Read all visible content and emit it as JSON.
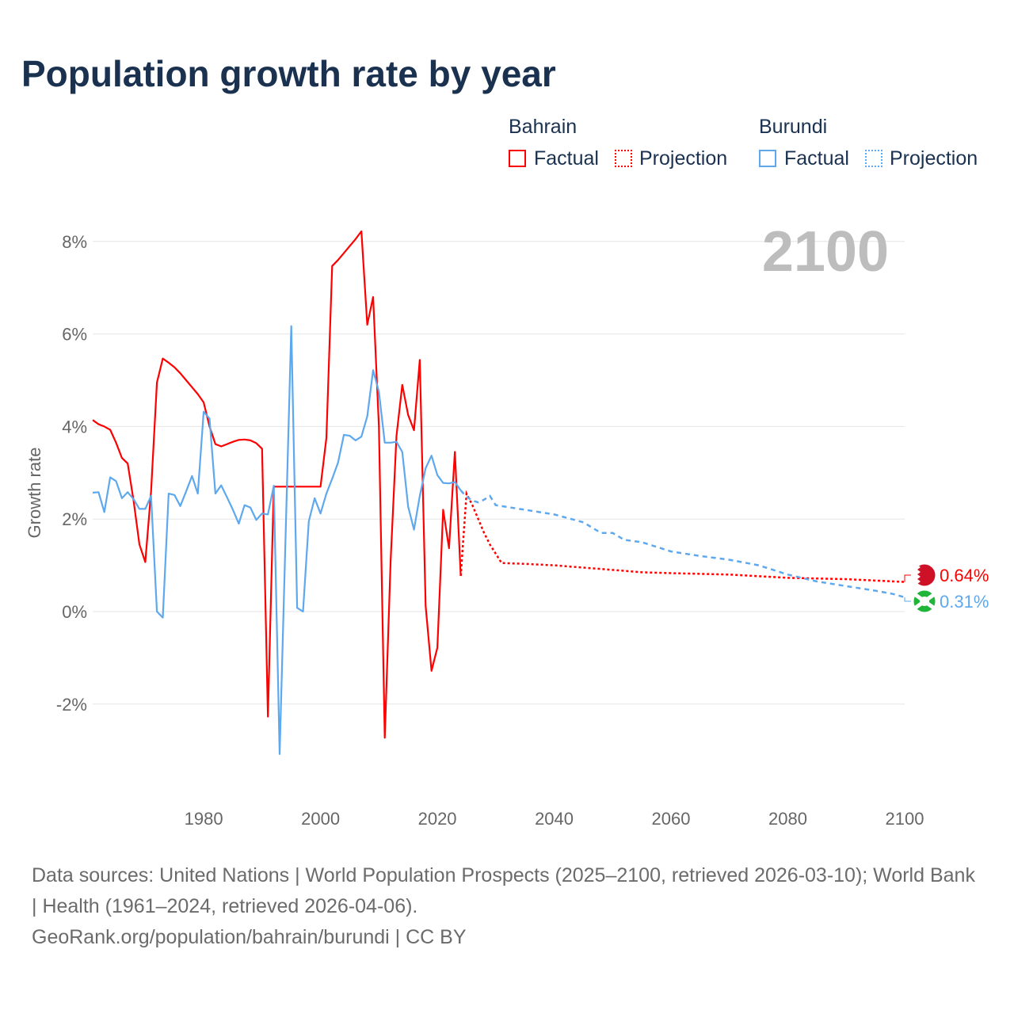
{
  "title": "Population growth rate by year",
  "legend": {
    "groups": [
      {
        "name": "Bahrain",
        "factual": "Factual",
        "projection": "Projection",
        "color": "#ff0000"
      },
      {
        "name": "Burundi",
        "factual": "Factual",
        "projection": "Projection",
        "color": "#5ea8ee"
      }
    ]
  },
  "year_label": "2100",
  "footer": {
    "line1": "Data sources: United Nations | World Population Prospects (2025–2100, retrieved 2026-03-10); World Bank | Health (1961–2024, retrieved 2026-04-06).",
    "line2": "GeoRank.org/population/bahrain/burundi | CC BY"
  },
  "chart_data": {
    "type": "line",
    "title": "Population growth rate by year",
    "xlabel": "",
    "ylabel": "Growth rate",
    "xlim": [
      1961,
      2100
    ],
    "ylim": [
      -3.5,
      8.5
    ],
    "grid": true,
    "legend_position": "top-right",
    "x_ticks": [
      1980,
      2000,
      2020,
      2040,
      2060,
      2080,
      2100
    ],
    "y_ticks": [
      {
        "v": -2,
        "label": "-2%"
      },
      {
        "v": 0,
        "label": "0%"
      },
      {
        "v": 2,
        "label": "2%"
      },
      {
        "v": 4,
        "label": "4%"
      },
      {
        "v": 6,
        "label": "6%"
      },
      {
        "v": 8,
        "label": "8%"
      }
    ],
    "series": [
      {
        "name": "Bahrain",
        "color": "#ff0000",
        "end_label": "0.64%",
        "factual": [
          [
            1961,
            4.14
          ],
          [
            1962,
            4.05
          ],
          [
            1963,
            4.0
          ],
          [
            1964,
            3.93
          ],
          [
            1965,
            3.65
          ],
          [
            1966,
            3.32
          ],
          [
            1967,
            3.2
          ],
          [
            1968,
            2.4
          ],
          [
            1969,
            1.45
          ],
          [
            1970,
            1.07
          ],
          [
            1971,
            2.6
          ],
          [
            1972,
            4.95
          ],
          [
            1973,
            5.47
          ],
          [
            1974,
            5.38
          ],
          [
            1975,
            5.28
          ],
          [
            1976,
            5.15
          ],
          [
            1977,
            5.0
          ],
          [
            1978,
            4.85
          ],
          [
            1979,
            4.7
          ],
          [
            1980,
            4.52
          ],
          [
            1981,
            4.0
          ],
          [
            1982,
            3.62
          ],
          [
            1983,
            3.57
          ],
          [
            1984,
            3.62
          ],
          [
            1985,
            3.67
          ],
          [
            1986,
            3.71
          ],
          [
            1987,
            3.72
          ],
          [
            1988,
            3.7
          ],
          [
            1989,
            3.64
          ],
          [
            1990,
            3.52
          ],
          [
            1991,
            -2.27
          ],
          [
            1992,
            2.7
          ],
          [
            1993,
            2.7
          ],
          [
            1994,
            2.7
          ],
          [
            1995,
            2.7
          ],
          [
            1996,
            2.7
          ],
          [
            1997,
            2.7
          ],
          [
            1998,
            2.7
          ],
          [
            1999,
            2.7
          ],
          [
            2000,
            2.7
          ],
          [
            2001,
            3.75
          ],
          [
            2002,
            7.47
          ],
          [
            2003,
            7.6
          ],
          [
            2004,
            7.75
          ],
          [
            2005,
            7.9
          ],
          [
            2006,
            8.05
          ],
          [
            2007,
            8.22
          ],
          [
            2008,
            6.2
          ],
          [
            2009,
            6.8
          ],
          [
            2010,
            4.0
          ],
          [
            2011,
            -2.73
          ],
          [
            2012,
            1.1
          ],
          [
            2013,
            3.8
          ],
          [
            2014,
            4.9
          ],
          [
            2015,
            4.25
          ],
          [
            2016,
            3.92
          ],
          [
            2017,
            5.44
          ],
          [
            2018,
            0.12
          ],
          [
            2019,
            -1.28
          ],
          [
            2020,
            -0.78
          ],
          [
            2021,
            2.2
          ],
          [
            2022,
            1.37
          ],
          [
            2023,
            3.45
          ],
          [
            2024,
            0.77
          ]
        ],
        "projection": [
          [
            2024,
            0.77
          ],
          [
            2025,
            2.55
          ],
          [
            2026,
            2.3
          ],
          [
            2027,
            2.0
          ],
          [
            2028,
            1.7
          ],
          [
            2029,
            1.45
          ],
          [
            2030,
            1.25
          ],
          [
            2031,
            1.05
          ],
          [
            2035,
            1.03
          ],
          [
            2040,
            1.0
          ],
          [
            2045,
            0.95
          ],
          [
            2050,
            0.9
          ],
          [
            2055,
            0.85
          ],
          [
            2060,
            0.83
          ],
          [
            2070,
            0.8
          ],
          [
            2080,
            0.73
          ],
          [
            2090,
            0.7
          ],
          [
            2100,
            0.64
          ]
        ]
      },
      {
        "name": "Burundi",
        "color": "#5ea8ee",
        "end_label": "0.31%",
        "factual": [
          [
            1961,
            2.57
          ],
          [
            1962,
            2.58
          ],
          [
            1963,
            2.15
          ],
          [
            1964,
            2.9
          ],
          [
            1965,
            2.82
          ],
          [
            1966,
            2.45
          ],
          [
            1967,
            2.58
          ],
          [
            1968,
            2.43
          ],
          [
            1969,
            2.22
          ],
          [
            1970,
            2.22
          ],
          [
            1971,
            2.5
          ],
          [
            1972,
            0.0
          ],
          [
            1973,
            -0.13
          ],
          [
            1974,
            2.55
          ],
          [
            1975,
            2.52
          ],
          [
            1976,
            2.28
          ],
          [
            1977,
            2.6
          ],
          [
            1978,
            2.93
          ],
          [
            1979,
            2.55
          ],
          [
            1980,
            4.32
          ],
          [
            1981,
            4.17
          ],
          [
            1982,
            2.55
          ],
          [
            1983,
            2.73
          ],
          [
            1984,
            2.47
          ],
          [
            1985,
            2.2
          ],
          [
            1986,
            1.9
          ],
          [
            1987,
            2.3
          ],
          [
            1988,
            2.25
          ],
          [
            1989,
            1.98
          ],
          [
            1990,
            2.12
          ],
          [
            1991,
            2.1
          ],
          [
            1992,
            2.72
          ],
          [
            1993,
            -3.08
          ],
          [
            1994,
            1.5
          ],
          [
            1995,
            6.17
          ],
          [
            1996,
            0.08
          ],
          [
            1997,
            0.0
          ],
          [
            1998,
            1.95
          ],
          [
            1999,
            2.45
          ],
          [
            2000,
            2.12
          ],
          [
            2001,
            2.55
          ],
          [
            2002,
            2.87
          ],
          [
            2003,
            3.22
          ],
          [
            2004,
            3.82
          ],
          [
            2005,
            3.8
          ],
          [
            2006,
            3.7
          ],
          [
            2007,
            3.78
          ],
          [
            2008,
            4.22
          ],
          [
            2009,
            5.22
          ],
          [
            2010,
            4.75
          ],
          [
            2011,
            3.65
          ],
          [
            2012,
            3.65
          ],
          [
            2013,
            3.67
          ],
          [
            2014,
            3.45
          ],
          [
            2015,
            2.27
          ],
          [
            2016,
            1.77
          ],
          [
            2017,
            2.5
          ],
          [
            2018,
            3.1
          ],
          [
            2019,
            3.37
          ],
          [
            2020,
            2.95
          ],
          [
            2021,
            2.78
          ],
          [
            2022,
            2.77
          ],
          [
            2023,
            2.8
          ],
          [
            2024,
            2.62
          ]
        ],
        "projection": [
          [
            2024,
            2.62
          ],
          [
            2025,
            2.48
          ],
          [
            2026,
            2.4
          ],
          [
            2027,
            2.36
          ],
          [
            2028,
            2.42
          ],
          [
            2029,
            2.5
          ],
          [
            2030,
            2.3
          ],
          [
            2035,
            2.2
          ],
          [
            2040,
            2.1
          ],
          [
            2045,
            1.93
          ],
          [
            2048,
            1.7
          ],
          [
            2050,
            1.7
          ],
          [
            2052,
            1.55
          ],
          [
            2055,
            1.5
          ],
          [
            2060,
            1.3
          ],
          [
            2065,
            1.2
          ],
          [
            2070,
            1.12
          ],
          [
            2075,
            1.0
          ],
          [
            2080,
            0.8
          ],
          [
            2085,
            0.65
          ],
          [
            2090,
            0.55
          ],
          [
            2095,
            0.45
          ],
          [
            2098,
            0.38
          ],
          [
            2100,
            0.31
          ]
        ]
      }
    ]
  }
}
